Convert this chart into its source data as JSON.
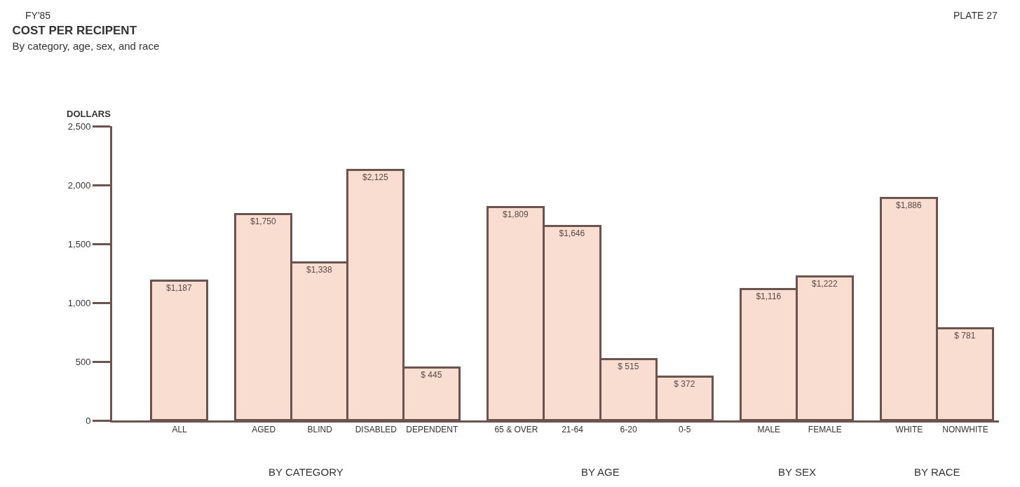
{
  "chart_data": {
    "type": "bar",
    "title": "COST PER RECIPENT",
    "subtitle": "By category, age, sex, and race",
    "ylabel": "DOLLARS",
    "categories": [
      "ALL",
      "AGED",
      "BLIND",
      "DISABLED",
      "DEPENDENT",
      "65 & OVER",
      "21-64",
      "6-20",
      "0-5",
      "MALE",
      "FEMALE",
      "WHITE",
      "NONWHITE"
    ],
    "values": [
      1187,
      1750,
      1338,
      2125,
      445,
      1809,
      1646,
      515,
      372,
      1116,
      1222,
      1886,
      781
    ],
    "value_labels": [
      "$1,187",
      "$1,750",
      "$1,338",
      "$2,125",
      "$ 445",
      "$1,809",
      "$1,646",
      "$ 515",
      "$ 372",
      "$1,116",
      "$1,222",
      "$1,886",
      "$ 781"
    ],
    "color": "#f8ddd0",
    "ylim": [
      0,
      2500
    ],
    "yticks": [
      0,
      {
        "value": 500,
        "label": "500"
      },
      {
        "value": 1000,
        "label": "1,000"
      },
      {
        "value": 1500,
        "label": "1,500"
      },
      {
        "value": 2000,
        "label": "2,000"
      },
      {
        "value": 2500,
        "label": "2,500"
      }
    ],
    "legend": false,
    "annotations": [
      "FY'85",
      "PLATE 27",
      "BY CATEGORY",
      "BY AGE",
      "BY SEX",
      "BY RACE"
    ]
  }
}
